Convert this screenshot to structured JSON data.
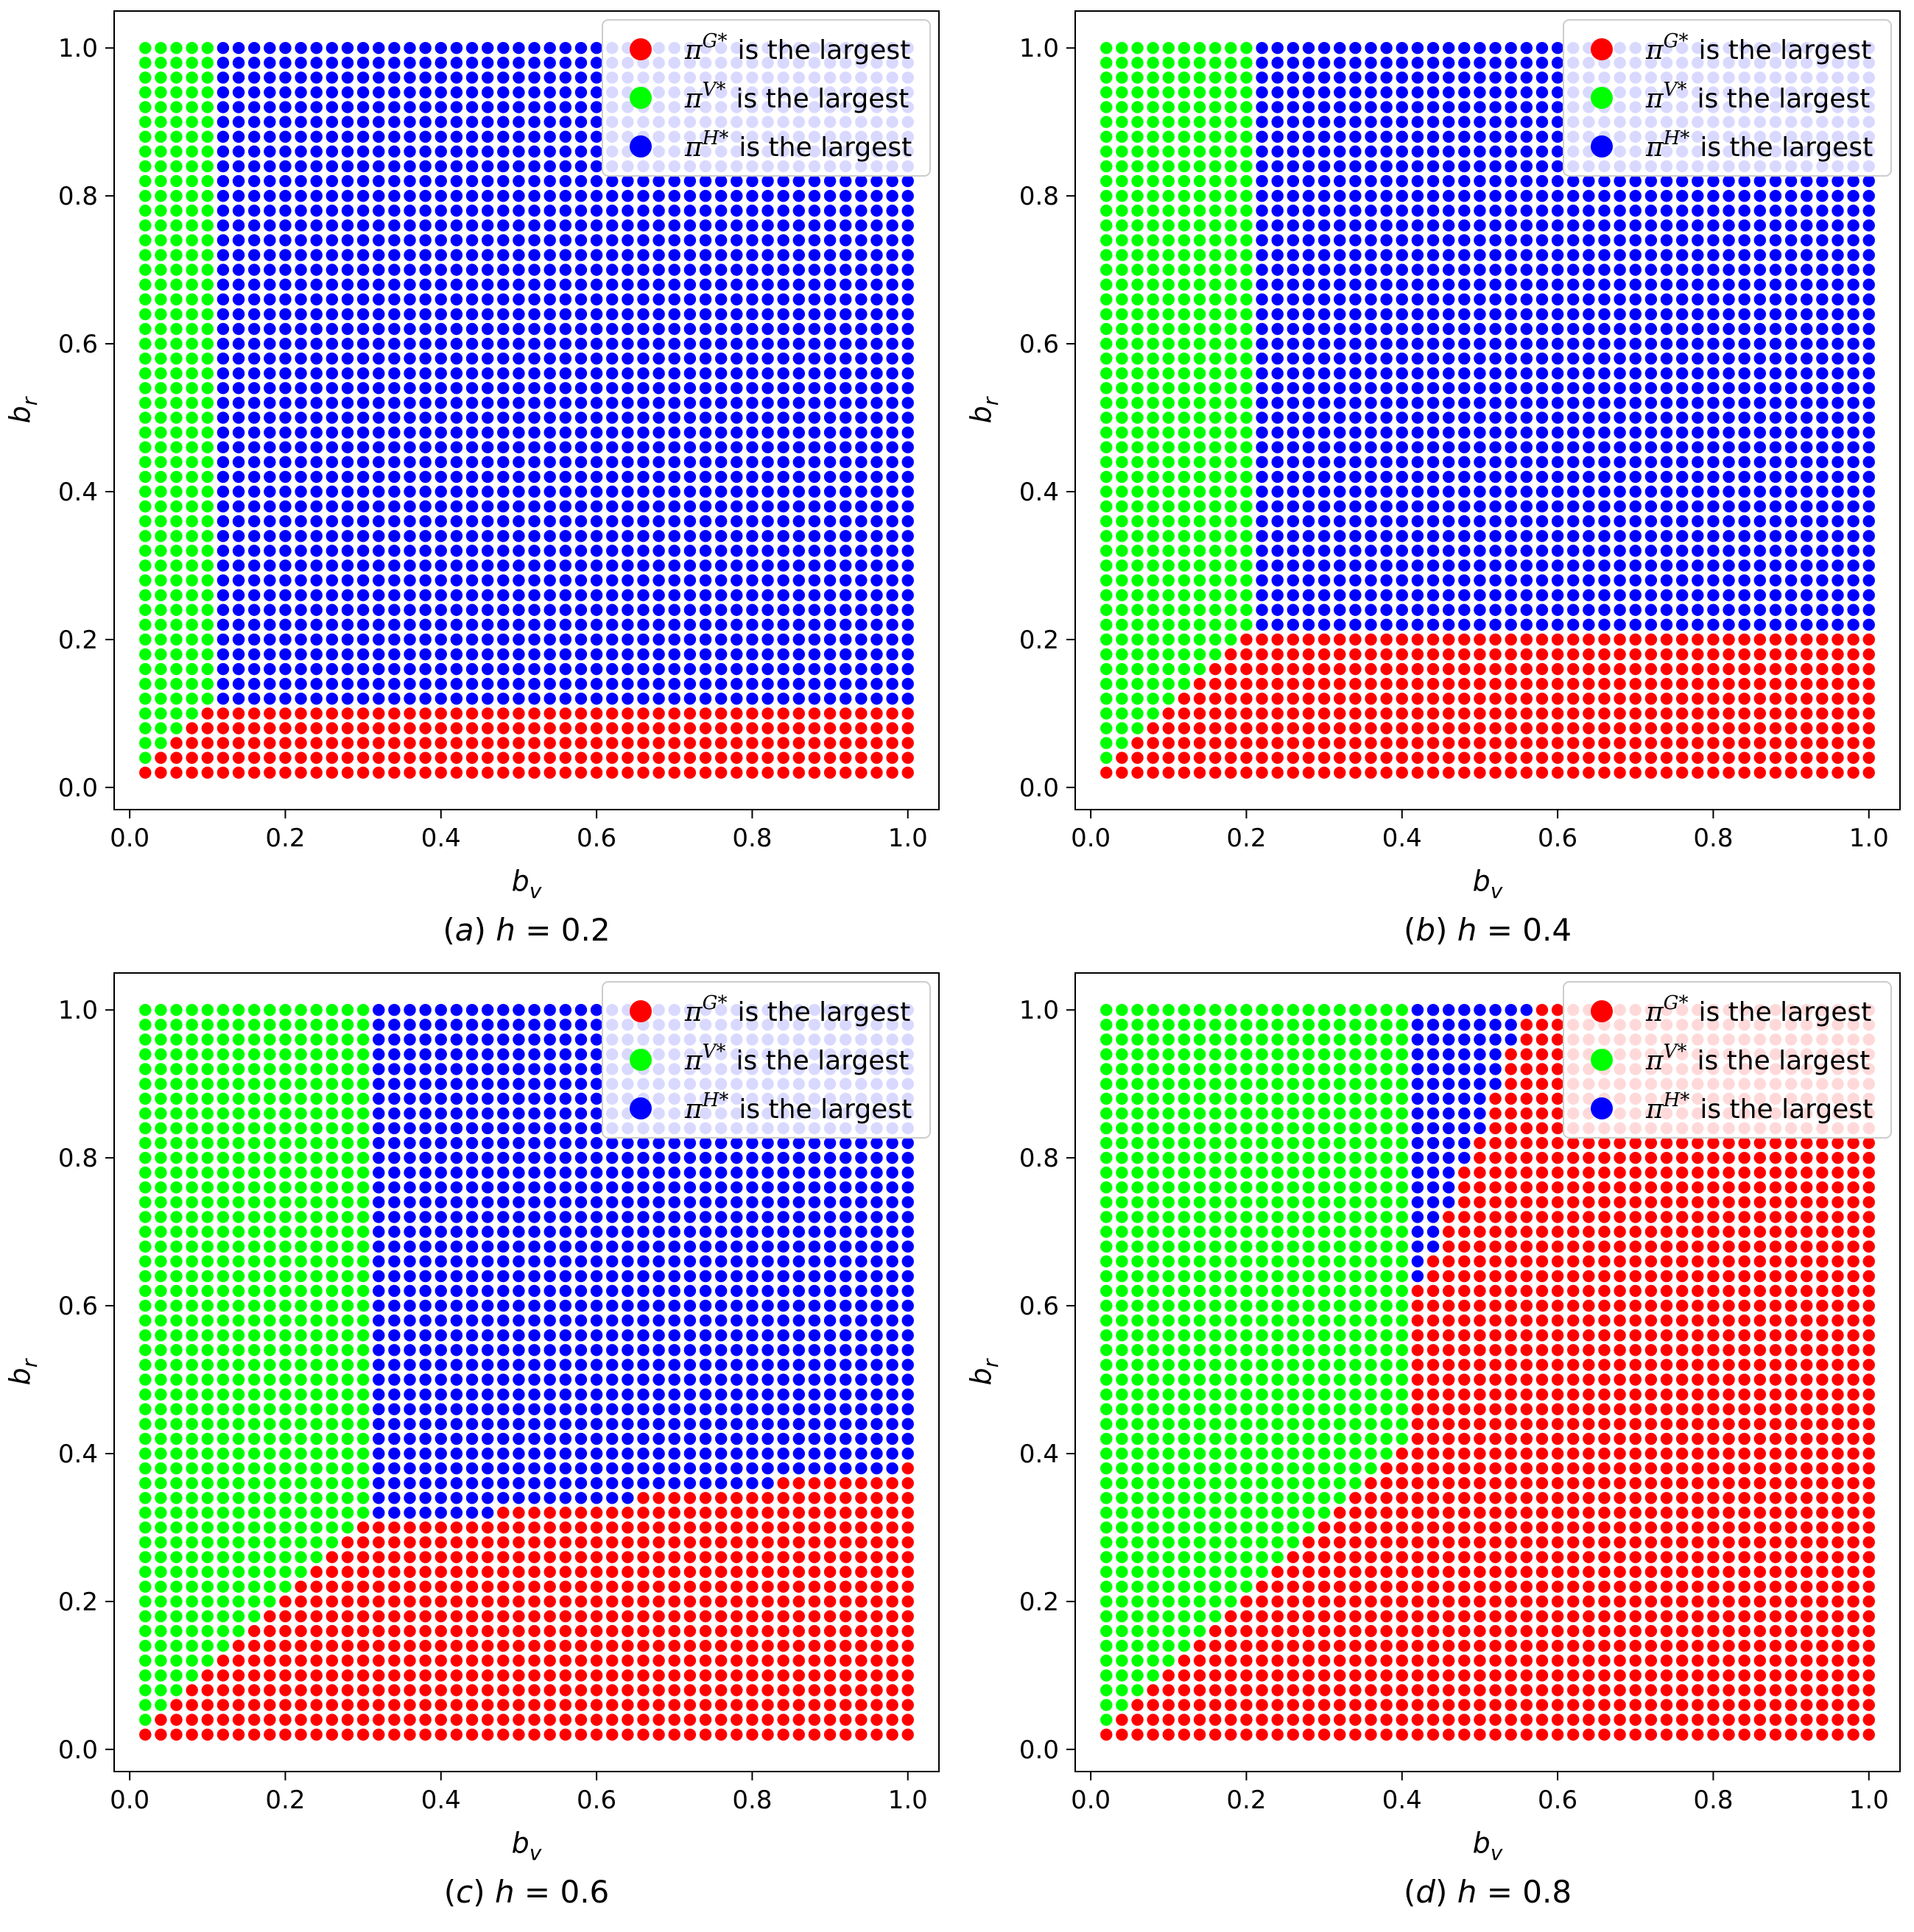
{
  "figure": {
    "panels_count": 4
  },
  "chart_data": [
    {
      "type": "scatter",
      "id": "a",
      "caption": {
        "label": "(a)",
        "param": "h",
        "eq": "=",
        "value": "0.2"
      },
      "h": 0.2,
      "xlabel": {
        "base": "b",
        "sub": "v"
      },
      "ylabel": {
        "base": "b",
        "sub": "r"
      },
      "xlim": [
        -0.02,
        1.04
      ],
      "ylim": [
        -0.03,
        1.05
      ],
      "xticks": [
        0.0,
        0.2,
        0.4,
        0.6,
        0.8,
        1.0
      ],
      "xtick_labels": [
        "0.0",
        "0.2",
        "0.4",
        "0.6",
        "0.8",
        "1.0"
      ],
      "yticks": [
        0.0,
        0.2,
        0.4,
        0.6,
        0.8,
        1.0
      ],
      "ytick_labels": [
        "0.0",
        "0.2",
        "0.4",
        "0.6",
        "0.8",
        "1.0"
      ],
      "grid": false,
      "legend_position": "top-right",
      "grid_points": {
        "start": 0.02,
        "stop": 1.0,
        "step": 0.02
      },
      "regions": [
        {
          "name": "G",
          "label": "is the largest",
          "color": "#ff0000",
          "rule": "b_r <= h/2 and b_r <= b_v"
        },
        {
          "name": "V",
          "label": "is the largest",
          "color": "#00ff00",
          "rule": "b_v <= h/2 and b_r > b_v"
        },
        {
          "name": "H",
          "label": "is the largest",
          "color": "#0000ff",
          "rule": "otherwise"
        }
      ]
    },
    {
      "type": "scatter",
      "id": "b",
      "caption": {
        "label": "(b)",
        "param": "h",
        "eq": "=",
        "value": "0.4"
      },
      "h": 0.4,
      "xlabel": {
        "base": "b",
        "sub": "v"
      },
      "ylabel": {
        "base": "b",
        "sub": "r"
      },
      "xlim": [
        -0.02,
        1.04
      ],
      "ylim": [
        -0.03,
        1.05
      ],
      "xticks": [
        0.0,
        0.2,
        0.4,
        0.6,
        0.8,
        1.0
      ],
      "xtick_labels": [
        "0.0",
        "0.2",
        "0.4",
        "0.6",
        "0.8",
        "1.0"
      ],
      "yticks": [
        0.0,
        0.2,
        0.4,
        0.6,
        0.8,
        1.0
      ],
      "ytick_labels": [
        "0.0",
        "0.2",
        "0.4",
        "0.6",
        "0.8",
        "1.0"
      ],
      "grid": false,
      "legend_position": "top-right",
      "grid_points": {
        "start": 0.02,
        "stop": 1.0,
        "step": 0.02
      },
      "regions": [
        {
          "name": "G",
          "label": "is the largest",
          "color": "#ff0000",
          "rule": "b_r <= h/2 and b_r <= b_v"
        },
        {
          "name": "V",
          "label": "is the largest",
          "color": "#00ff00",
          "rule": "b_v <= h/2 and b_r > b_v"
        },
        {
          "name": "H",
          "label": "is the largest",
          "color": "#0000ff",
          "rule": "otherwise"
        }
      ]
    },
    {
      "type": "scatter",
      "id": "c",
      "caption": {
        "label": "(c)",
        "param": "h",
        "eq": "=",
        "value": "0.6"
      },
      "h": 0.6,
      "xlabel": {
        "base": "b",
        "sub": "v"
      },
      "ylabel": {
        "base": "b",
        "sub": "r"
      },
      "xlim": [
        -0.02,
        1.04
      ],
      "ylim": [
        -0.03,
        1.05
      ],
      "xticks": [
        0.0,
        0.2,
        0.4,
        0.6,
        0.8,
        1.0
      ],
      "xtick_labels": [
        "0.0",
        "0.2",
        "0.4",
        "0.6",
        "0.8",
        "1.0"
      ],
      "yticks": [
        0.0,
        0.2,
        0.4,
        0.6,
        0.8,
        1.0
      ],
      "ytick_labels": [
        "0.0",
        "0.2",
        "0.4",
        "0.6",
        "0.8",
        "1.0"
      ],
      "grid": false,
      "legend_position": "top-right",
      "grid_points": {
        "start": 0.02,
        "stop": 1.0,
        "step": 0.02
      },
      "regions": [
        {
          "name": "G",
          "label": "is the largest",
          "color": "#ff0000",
          "rule": "b_r <= h/2 and b_r <= b_v (red boundary rises slightly from 0.30 to 0.38 as b_v increases)"
        },
        {
          "name": "V",
          "label": "is the largest",
          "color": "#00ff00",
          "rule": "b_v <= h/2 and b_r > b_v"
        },
        {
          "name": "H",
          "label": "is the largest",
          "color": "#0000ff",
          "rule": "otherwise"
        }
      ]
    },
    {
      "type": "scatter",
      "id": "d",
      "caption": {
        "label": "(d)",
        "param": "h",
        "eq": "=",
        "value": "0.8"
      },
      "h": 0.8,
      "xlabel": {
        "base": "b",
        "sub": "v"
      },
      "ylabel": {
        "base": "b",
        "sub": "r"
      },
      "xlim": [
        -0.02,
        1.04
      ],
      "ylim": [
        -0.03,
        1.05
      ],
      "xticks": [
        0.0,
        0.2,
        0.4,
        0.6,
        0.8,
        1.0
      ],
      "xtick_labels": [
        "0.0",
        "0.2",
        "0.4",
        "0.6",
        "0.8",
        "1.0"
      ],
      "yticks": [
        0.0,
        0.2,
        0.4,
        0.6,
        0.8,
        1.0
      ],
      "ytick_labels": [
        "0.0",
        "0.2",
        "0.4",
        "0.6",
        "0.8",
        "1.0"
      ],
      "grid": false,
      "legend_position": "top-right",
      "grid_points": {
        "start": 0.02,
        "stop": 1.0,
        "step": 0.02
      },
      "regions": [
        {
          "name": "G",
          "label": "is the largest",
          "color": "#ff0000",
          "rule": "b_r <= b_v (below the diagonal) or b_r below the H-region lower edge"
        },
        {
          "name": "V",
          "label": "is the largest",
          "color": "#00ff00",
          "rule": "b_v <= h/2 and b_r > b_v"
        },
        {
          "name": "H",
          "label": "is the largest",
          "color": "#0000ff",
          "rule": "small wedge near b_v 0.42-0.56, b_r 0.6-1.0"
        }
      ]
    }
  ]
}
